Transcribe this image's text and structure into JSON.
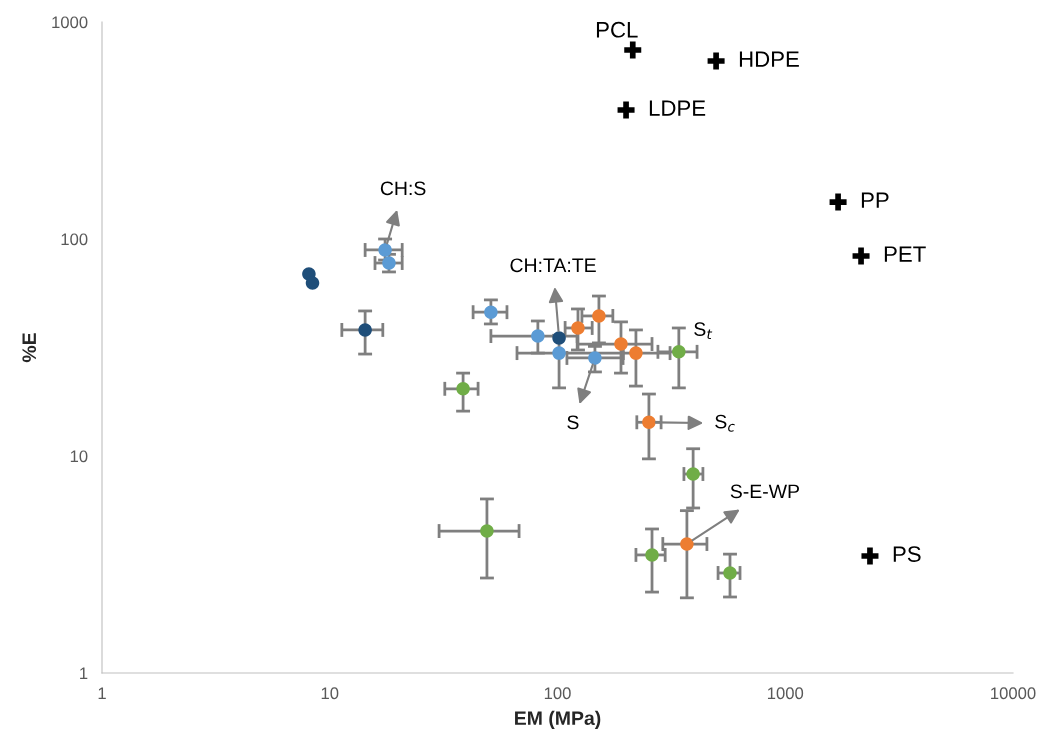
{
  "chart_data": {
    "type": "scatter",
    "xlabel": "EM (MPa)",
    "ylabel": "%E",
    "log": "xy",
    "xlim": [
      1,
      10000
    ],
    "xticks": [
      1,
      10,
      100,
      1000,
      10000
    ],
    "ylim": [
      1,
      1000
    ],
    "yticks": [
      1,
      10,
      100,
      1000
    ],
    "marker": "circle",
    "series": [
      {
        "color": "#1f4e79",
        "x": [
          8.1,
          8.4,
          14.3,
          101.6
        ],
        "values": [
          69,
          62.7,
          38.1,
          35.0
        ],
        "xerrors": [
          null,
          null,
          [
            11.3,
            17.1
          ],
          null
        ],
        "errors": [
          null,
          null,
          [
            29.5,
            46.6
          ],
          null
        ]
      },
      {
        "color": "#5b9bd5",
        "x": [
          17.5,
          18.2,
          51,
          82,
          101.6,
          146
        ],
        "values": [
          89,
          77.5,
          46,
          35.7,
          29.8,
          28.3
        ],
        "xerrors": [
          [
            14.3,
            20.8
          ],
          [
            15.8,
            20.8
          ],
          [
            42.6,
            60
          ],
          [
            51,
            122
          ],
          [
            66.4,
            194
          ],
          [
            110,
            194
          ]
        ],
        "errors": [
          [
            80,
            100
          ],
          [
            70.5,
            85
          ],
          [
            40.6,
            52.4
          ],
          [
            29.8,
            41.9
          ],
          [
            20.6,
            36
          ],
          [
            24.4,
            32
          ]
        ]
      },
      {
        "color": "#ed7d31",
        "x": [
          123,
          152,
          190,
          221,
          252,
          370
        ],
        "values": [
          38.9,
          44.2,
          32.8,
          29.8,
          14.3,
          3.93
        ],
        "xerrors": [
          [
            108,
            142
          ],
          [
            128,
            175
          ],
          [
            122,
            260
          ],
          [
            194,
            312
          ],
          [
            223,
            285
          ],
          [
            290,
            453
          ]
        ],
        "errors": [
          [
            30.8,
            47.6
          ],
          [
            33.2,
            54.6
          ],
          [
            24.1,
            41.5
          ],
          [
            21,
            38.1
          ],
          [
            9.7,
            19.3
          ],
          [
            2.22,
            5.6
          ]
        ]
      },
      {
        "color": "#70ad47",
        "x": [
          38.5,
          341,
          394,
          49,
          260,
          572
        ],
        "values": [
          20.4,
          30.2,
          8.26,
          4.51,
          3.5,
          2.89
        ],
        "xerrors": [
          [
            32,
            44.8
          ],
          [
            276,
            410
          ],
          [
            359,
            435
          ],
          [
            30.2,
            67.8
          ],
          [
            221,
            297
          ],
          [
            507,
            633
          ]
        ],
        "errors": [
          [
            16.1,
            24.1
          ],
          [
            20.6,
            38.9
          ],
          [
            5.76,
            10.8
          ],
          [
            2.74,
            6.34
          ],
          [
            2.36,
            4.61
          ],
          [
            2.24,
            3.53
          ]
        ]
      },
      {
        "name": "PCL",
        "color": "#000000",
        "marker": "cross",
        "x": [
          214
        ],
        "values": [
          743
        ]
      },
      {
        "name": "HDPE",
        "color": "#000000",
        "marker": "cross",
        "x": [
          497
        ],
        "values": [
          661
        ]
      },
      {
        "name": "LDPE",
        "color": "#000000",
        "marker": "cross",
        "x": [
          200
        ],
        "values": [
          393
        ]
      },
      {
        "name": "PP",
        "color": "#000000",
        "marker": "cross",
        "x": [
          1706
        ],
        "values": [
          148
        ]
      },
      {
        "name": "PET",
        "color": "#000000",
        "marker": "cross",
        "x": [
          2152
        ],
        "values": [
          83.5
        ]
      },
      {
        "name": "PS",
        "color": "#000000",
        "marker": "cross",
        "x": [
          2355
        ],
        "values": [
          3.46
        ]
      }
    ],
    "annotations": [
      {
        "text": "CH:S",
        "x": 17.5,
        "y": 89
      },
      {
        "text": "CH:TA:TE",
        "x": 101.6,
        "y": 35.0
      },
      {
        "text": "S",
        "x": 146,
        "y": 28.3
      },
      {
        "text": "S$_{c}$",
        "x": 252,
        "y": 14.3
      },
      {
        "text": "S$_{t}$",
        "x": 341,
        "y": 30.2
      },
      {
        "text": "S-E-WP",
        "x": 370,
        "y": 3.93
      }
    ]
  }
}
